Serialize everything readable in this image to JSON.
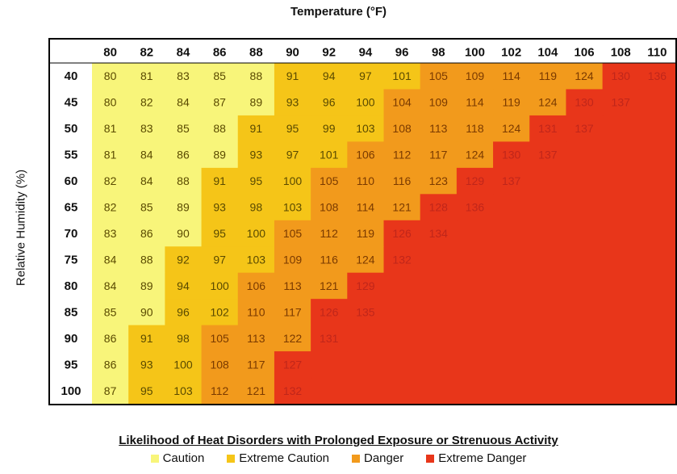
{
  "chart_data": {
    "type": "heatmap",
    "title": "Temperature (°F)",
    "xlabel": "Temperature (°F)",
    "ylabel": "Relative Humidity (%)",
    "x": [
      80,
      82,
      84,
      86,
      88,
      90,
      92,
      94,
      96,
      98,
      100,
      102,
      104,
      106,
      108,
      110
    ],
    "y": [
      40,
      45,
      50,
      55,
      60,
      65,
      70,
      75,
      80,
      85,
      90,
      95,
      100
    ],
    "values": [
      [
        80,
        81,
        83,
        85,
        88,
        91,
        94,
        97,
        101,
        105,
        109,
        114,
        119,
        124,
        130,
        136
      ],
      [
        80,
        82,
        84,
        87,
        89,
        93,
        96,
        100,
        104,
        109,
        114,
        119,
        124,
        130,
        137,
        null
      ],
      [
        81,
        83,
        85,
        88,
        91,
        95,
        99,
        103,
        108,
        113,
        118,
        124,
        131,
        137,
        null,
        null
      ],
      [
        81,
        84,
        86,
        89,
        93,
        97,
        101,
        106,
        112,
        117,
        124,
        130,
        137,
        null,
        null,
        null
      ],
      [
        82,
        84,
        88,
        91,
        95,
        100,
        105,
        110,
        116,
        123,
        129,
        137,
        null,
        null,
        null,
        null
      ],
      [
        82,
        85,
        89,
        93,
        98,
        103,
        108,
        114,
        121,
        128,
        136,
        null,
        null,
        null,
        null,
        null
      ],
      [
        83,
        86,
        90,
        95,
        100,
        105,
        112,
        119,
        126,
        134,
        null,
        null,
        null,
        null,
        null,
        null
      ],
      [
        84,
        88,
        92,
        97,
        103,
        109,
        116,
        124,
        132,
        null,
        null,
        null,
        null,
        null,
        null,
        null
      ],
      [
        84,
        89,
        94,
        100,
        106,
        113,
        121,
        129,
        null,
        null,
        null,
        null,
        null,
        null,
        null,
        null
      ],
      [
        85,
        90,
        96,
        102,
        110,
        117,
        126,
        135,
        null,
        null,
        null,
        null,
        null,
        null,
        null,
        null
      ],
      [
        86,
        91,
        98,
        105,
        113,
        122,
        131,
        null,
        null,
        null,
        null,
        null,
        null,
        null,
        null,
        null
      ],
      [
        86,
        93,
        100,
        108,
        117,
        127,
        null,
        null,
        null,
        null,
        null,
        null,
        null,
        null,
        null,
        null
      ],
      [
        87,
        95,
        103,
        112,
        121,
        132,
        null,
        null,
        null,
        null,
        null,
        null,
        null,
        null,
        null,
        null
      ]
    ],
    "categories_scale": [
      {
        "name": "Caution",
        "color": "#f8f57a"
      },
      {
        "name": "Extreme Caution",
        "color": "#f5c518"
      },
      {
        "name": "Danger",
        "color": "#f29a1c"
      },
      {
        "name": "Extreme Danger",
        "color": "#e8361a"
      }
    ],
    "thresholds": {
      "extreme_caution": 91,
      "danger": 104,
      "extreme_danger": 126
    },
    "legend_title": "Likelihood of Heat Disorders with Prolonged Exposure or Strenuous Activity",
    "legend_placement": "bottom",
    "grid": false
  }
}
